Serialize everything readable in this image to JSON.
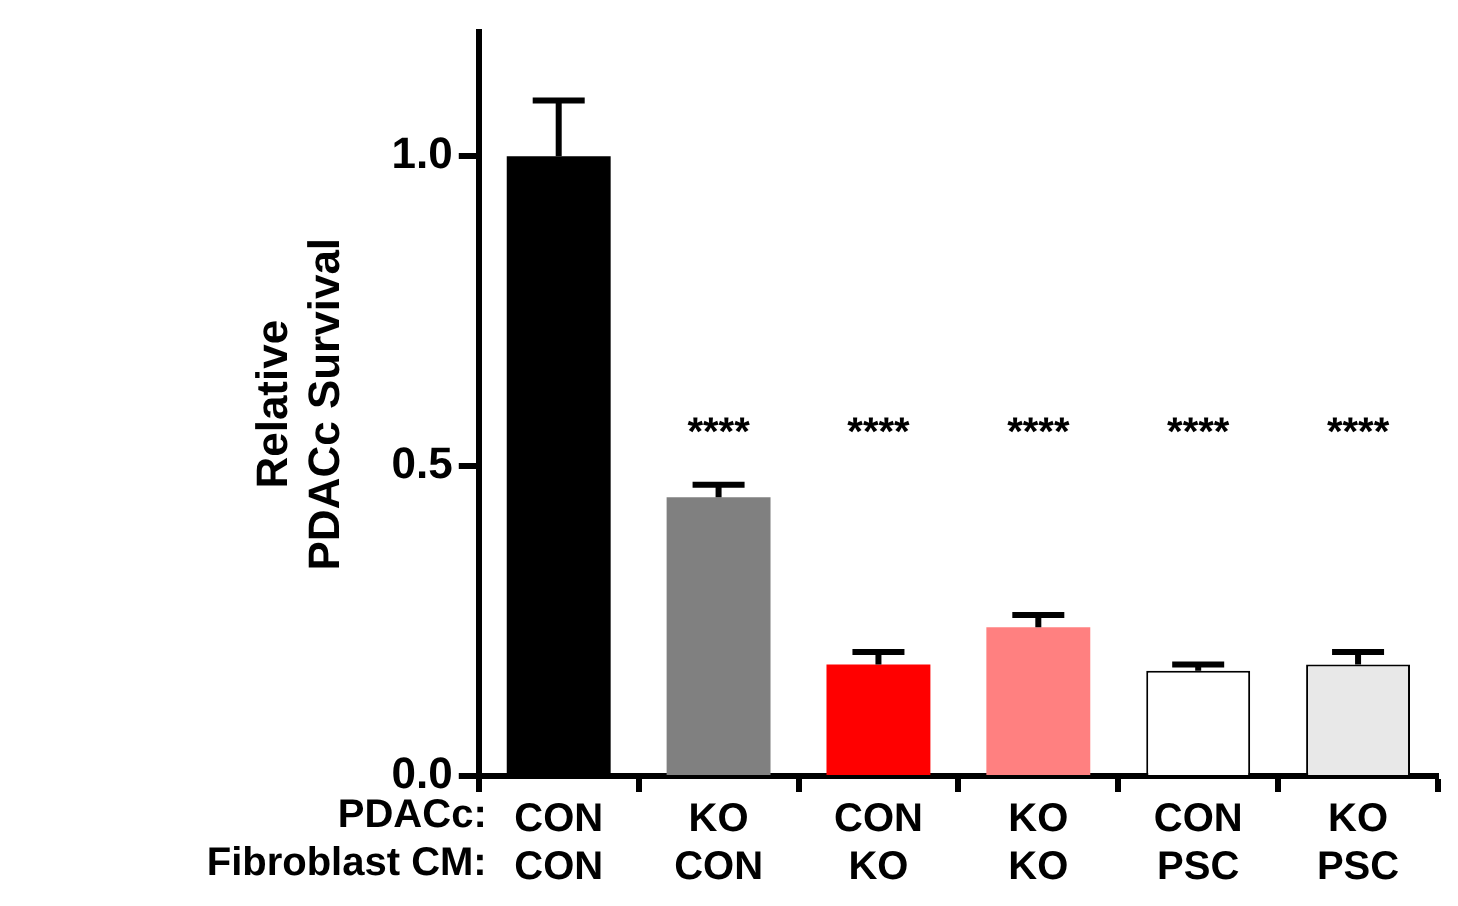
{
  "chart_data": {
    "type": "bar",
    "ylabel": "Relative\nPDACc Survival",
    "categories": [
      "CON\nCON",
      "KO\nCON",
      "CON\nKO",
      "KO\nKO",
      "CON\nPSC",
      "KO\nPSC"
    ],
    "values": [
      1.0,
      0.45,
      0.18,
      0.24,
      0.17,
      0.18
    ],
    "colors": [
      "#000000",
      "#808080",
      "#ff0000",
      "#ff8080",
      "#ffffff",
      "#e8e8e8"
    ],
    "errors": [
      [
        1.0,
        1.09
      ],
      [
        0.45,
        0.47
      ],
      [
        0.18,
        0.2
      ],
      [
        0.24,
        0.26
      ],
      [
        0.17,
        0.18
      ],
      [
        0.18,
        0.2
      ]
    ],
    "ylim": [
      0,
      1.2
    ],
    "yticks": [
      {
        "value": 0,
        "label": "0.0"
      },
      {
        "value": 0.5,
        "label": "0.5"
      },
      {
        "value": 1,
        "label": "1.0"
      }
    ],
    "annotations": [
      "PDACc:",
      "Fibroblast CM:",
      "****",
      "****",
      "****",
      "****",
      "****"
    ],
    "grid": false,
    "legend": false
  }
}
